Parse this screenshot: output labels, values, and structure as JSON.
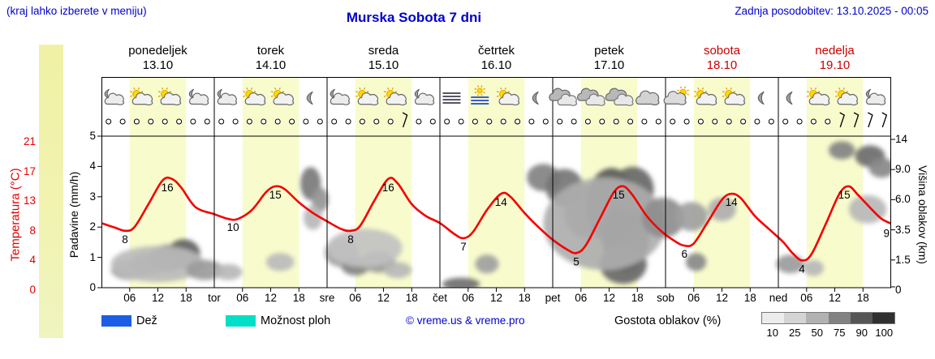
{
  "header": {
    "menu_hint": "(kraj lahko izberete v meniju)",
    "title": "Murska Sobota 7 dni",
    "last_update": "Zadnja posodobitev: 13.10.2025 - 00:05"
  },
  "days": [
    {
      "name": "ponedeljek",
      "date": "13.10",
      "weekend": false
    },
    {
      "name": "torek",
      "date": "14.10",
      "weekend": false
    },
    {
      "name": "sreda",
      "date": "15.10",
      "weekend": false
    },
    {
      "name": "četrtek",
      "date": "16.10",
      "weekend": false
    },
    {
      "name": "petek",
      "date": "17.10",
      "weekend": false
    },
    {
      "name": "sobota",
      "date": "18.10",
      "weekend": true
    },
    {
      "name": "nedelja",
      "date": "19.10",
      "weekend": true
    }
  ],
  "axes": {
    "temperature": {
      "label": "Temperatura (°C)",
      "color": "#e00000",
      "ticks": [
        0,
        4,
        8,
        13,
        17,
        21
      ]
    },
    "precipitation": {
      "label": "Padavine (mm/h)",
      "ticks": [
        0,
        1,
        2,
        3,
        4,
        5
      ]
    },
    "cloud_height": {
      "label": "Višina oblakov (km)",
      "ticks": [
        "0",
        "1.5",
        "3.5",
        "6.0",
        "9.0",
        "14"
      ]
    },
    "x": {
      "hour_labels": [
        "06",
        "12",
        "18"
      ],
      "day_boundary_labels": [
        "tor",
        "sre",
        "čet",
        "pet",
        "sob",
        "ned"
      ]
    }
  },
  "legend": {
    "rain_label": "Dež",
    "rain_color": "#1b5ee5",
    "showers_label": "Možnost ploh",
    "showers_color": "#00dfc8",
    "copyright": "© vreme.us & vreme.pro",
    "cloud_density_label": "Gostota oblakov (%)",
    "cloud_density_ticks": [
      "10",
      "25",
      "50",
      "75",
      "90",
      "100"
    ],
    "cloud_density_colors": [
      "#ececec",
      "#d4d4d4",
      "#b2b2b2",
      "#828282",
      "#565656",
      "#303030"
    ]
  },
  "chart_data": {
    "type": "line",
    "title": "Murska Sobota 7 dni",
    "x_unit": "hours",
    "x_range": [
      0,
      168
    ],
    "grid": false,
    "day_band": {
      "start_hour": 6,
      "end_hour": 18,
      "color": "#f8fccd"
    },
    "cloud_height_ticks_km": [
      0,
      1.5,
      3.5,
      6,
      9,
      14
    ],
    "temperature_series": {
      "name": "Temperatura",
      "unit": "°C",
      "color": "#f40000",
      "points": [
        [
          0,
          9.3
        ],
        [
          3,
          8.5
        ],
        [
          5,
          8
        ],
        [
          7,
          8.6
        ],
        [
          10,
          12.5
        ],
        [
          13,
          15.8
        ],
        [
          15,
          16
        ],
        [
          17,
          14.8
        ],
        [
          20,
          12
        ],
        [
          24,
          10.8
        ],
        [
          27,
          10
        ],
        [
          29,
          10
        ],
        [
          32,
          11.5
        ],
        [
          35,
          14.2
        ],
        [
          37,
          15
        ],
        [
          39,
          14.6
        ],
        [
          42,
          12.8
        ],
        [
          45,
          11
        ],
        [
          48,
          9.6
        ],
        [
          51,
          8.3
        ],
        [
          53,
          8
        ],
        [
          55,
          8.8
        ],
        [
          58,
          13
        ],
        [
          61,
          16
        ],
        [
          63,
          15.4
        ],
        [
          66,
          12.5
        ],
        [
          69,
          10.5
        ],
        [
          72,
          9.3
        ],
        [
          75,
          7.6
        ],
        [
          77,
          7
        ],
        [
          79,
          7.8
        ],
        [
          82,
          11.5
        ],
        [
          85,
          14
        ],
        [
          87,
          13.6
        ],
        [
          90,
          11
        ],
        [
          93,
          8.6
        ],
        [
          96,
          6.8
        ],
        [
          99,
          5.5
        ],
        [
          101,
          5
        ],
        [
          103,
          6
        ],
        [
          106,
          10
        ],
        [
          109,
          14.2
        ],
        [
          111,
          15
        ],
        [
          113,
          13.8
        ],
        [
          116,
          10.5
        ],
        [
          119,
          8
        ],
        [
          122,
          6.6
        ],
        [
          124,
          6
        ],
        [
          126,
          6.3
        ],
        [
          129,
          9.5
        ],
        [
          132,
          13.2
        ],
        [
          134,
          14
        ],
        [
          136,
          13.4
        ],
        [
          139,
          10.5
        ],
        [
          142,
          8.3
        ],
        [
          145,
          6.5
        ],
        [
          147,
          5
        ],
        [
          149,
          4
        ],
        [
          151,
          4.8
        ],
        [
          154,
          9
        ],
        [
          157,
          14
        ],
        [
          159,
          15
        ],
        [
          161,
          13.8
        ],
        [
          164,
          11.5
        ],
        [
          166,
          10
        ],
        [
          168,
          9.2
        ]
      ],
      "point_labels": [
        [
          5,
          8
        ],
        [
          14,
          16
        ],
        [
          28,
          10
        ],
        [
          37,
          15
        ],
        [
          53,
          8
        ],
        [
          61,
          16
        ],
        [
          77,
          7
        ],
        [
          85,
          14
        ],
        [
          101,
          5
        ],
        [
          110,
          15
        ],
        [
          124,
          6
        ],
        [
          134,
          14
        ],
        [
          149,
          4
        ],
        [
          158,
          15
        ],
        [
          167,
          9
        ]
      ]
    },
    "cloud_blobs_h_km_rh_rkm_density": [
      [
        6,
        1.0,
        4,
        0.5,
        40
      ],
      [
        10,
        1.3,
        4,
        0.6,
        55
      ],
      [
        14,
        1.6,
        4,
        0.8,
        65
      ],
      [
        17.5,
        1.9,
        3.5,
        0.9,
        75
      ],
      [
        12,
        1.3,
        10,
        1.0,
        28
      ],
      [
        22,
        1.0,
        4,
        0.5,
        45
      ],
      [
        27,
        0.9,
        3,
        0.4,
        30
      ],
      [
        38,
        1.4,
        3,
        0.5,
        28
      ],
      [
        44.5,
        7.6,
        2.2,
        1.7,
        62
      ],
      [
        46.5,
        6.0,
        1.8,
        1.1,
        48
      ],
      [
        45,
        4.5,
        2,
        1.0,
        30
      ],
      [
        51,
        2.0,
        3.5,
        0.9,
        42
      ],
      [
        54,
        1.2,
        3,
        0.5,
        58
      ],
      [
        59,
        1.4,
        3.5,
        0.6,
        45
      ],
      [
        56,
        2.3,
        8,
        1.2,
        25
      ],
      [
        63,
        1.0,
        3,
        0.4,
        30
      ],
      [
        76.5,
        0.3,
        4,
        0.5,
        68
      ],
      [
        82,
        1.3,
        2.5,
        0.5,
        42
      ],
      [
        94,
        8.2,
        3.5,
        1.5,
        58
      ],
      [
        98.5,
        7.2,
        4,
        1.8,
        65
      ],
      [
        103,
        5.0,
        4.5,
        2.2,
        55
      ],
      [
        108.5,
        5.5,
        5.5,
        3.2,
        80
      ],
      [
        111.5,
        3.0,
        5,
        2.3,
        88
      ],
      [
        113,
        7.0,
        4.5,
        2.2,
        72
      ],
      [
        111,
        1.3,
        5,
        1.1,
        72
      ],
      [
        107,
        4.0,
        13,
        3.4,
        35
      ],
      [
        119.5,
        4.5,
        4.5,
        1.6,
        52
      ],
      [
        125.5,
        4.6,
        3.5,
        1.2,
        42
      ],
      [
        126.5,
        1.4,
        2.2,
        0.5,
        55
      ],
      [
        132,
        5.2,
        3,
        1.0,
        35
      ],
      [
        146.5,
        1.3,
        3,
        0.5,
        45
      ],
      [
        151.5,
        1.1,
        2.2,
        0.4,
        30
      ],
      [
        157.5,
        12.2,
        2.8,
        1.5,
        58
      ],
      [
        163.5,
        11.2,
        3.2,
        1.8,
        70
      ],
      [
        166,
        9.3,
        2.8,
        1.3,
        55
      ],
      [
        163,
        5.2,
        4,
        1.2,
        30
      ]
    ],
    "weather_icons": [
      "moon-cloud",
      "sun-cloud",
      "sun-cloud",
      "moon-cloud",
      "moon-cloud",
      "sun-cloud",
      "sun-cloud",
      "moon",
      "moon-cloud",
      "sun-cloud",
      "sun-cloud",
      "moon-cloud",
      "fog",
      "fog-sun",
      "sun-cloud",
      "moon",
      "clouds",
      "clouds",
      "clouds",
      "cloud",
      "cloud-sun",
      "sun-cloud",
      "sun-cloud",
      "moon",
      "moon",
      "sun-cloud",
      "sun-cloud",
      "moon-cloud"
    ],
    "wind": {
      "slot_hours": 3,
      "slots": 56,
      "symbol_calm": "circle",
      "barb_slots": [
        21,
        52,
        53,
        54,
        55
      ]
    }
  }
}
